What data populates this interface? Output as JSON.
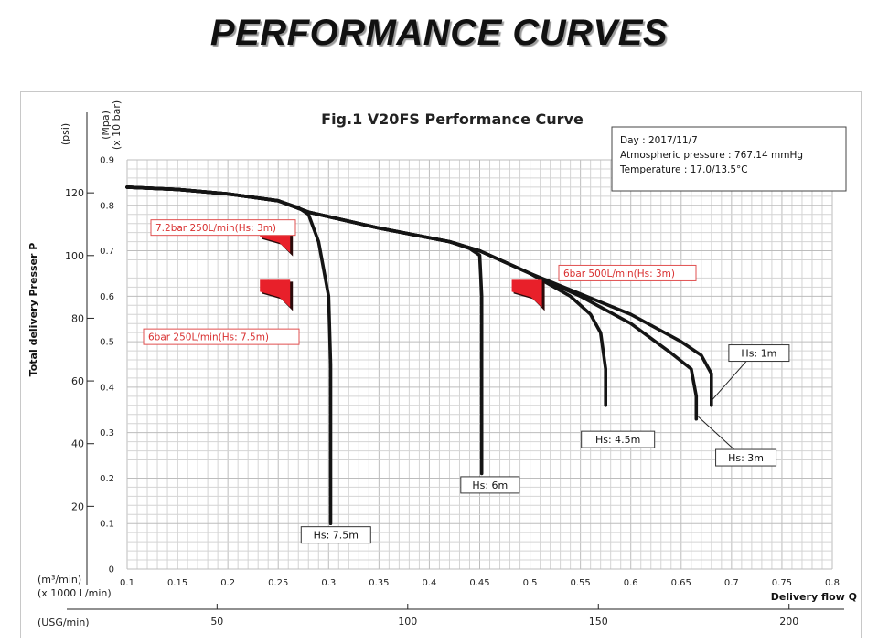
{
  "page": {
    "title": "PERFORMANCE CURVES"
  },
  "chart_data": {
    "type": "line",
    "title": "Fig.1 V20FS Performance Curve",
    "xlabel": "Delivery flow Q",
    "x_units": [
      "(m³/min)",
      "(x 1000 L/min)"
    ],
    "x2_units": "(USG/min)",
    "ylabel": "Total delivery Presser  P",
    "y_units_psi": "(psi)",
    "y_units_mpa": [
      "(Mpa)",
      "(x 10 bar)"
    ],
    "xlim": [
      0.1,
      0.8
    ],
    "ylim": [
      0,
      0.9
    ],
    "x_ticks": [
      "0.1",
      "0.15",
      "0.2",
      "0.25",
      "0.3",
      "0.35",
      "0.4",
      "0.45",
      "0.5",
      "0.55",
      "0.6",
      "0.65",
      "0.7",
      "0.75",
      "0.8"
    ],
    "y_ticks_mpa": [
      "0",
      "0.1",
      "0.2",
      "0.3",
      "0.4",
      "0.5",
      "0.6",
      "0.7",
      "0.8",
      "0.9"
    ],
    "y_ticks_psi": [
      {
        "value": 20,
        "label": "20"
      },
      {
        "value": 40,
        "label": "40"
      },
      {
        "value": 60,
        "label": "60"
      },
      {
        "value": 80,
        "label": "80"
      },
      {
        "value": 100,
        "label": "100"
      },
      {
        "value": 120,
        "label": "120"
      }
    ],
    "x2_ticks": [
      {
        "value": 50,
        "label": "50"
      },
      {
        "value": 100,
        "label": "100"
      },
      {
        "value": 150,
        "label": "150"
      },
      {
        "value": 200,
        "label": "200"
      }
    ],
    "grid": true,
    "info_box": {
      "lines": [
        "Day : 2017/11/7",
        "Atmospheric pressure  : 767.14 mmHg",
        "Temperature : 17.0/13.5°C"
      ]
    },
    "series": [
      {
        "name": "Hs: 7.5m",
        "points": [
          [
            0.1,
            0.84
          ],
          [
            0.15,
            0.835
          ],
          [
            0.2,
            0.825
          ],
          [
            0.25,
            0.81
          ],
          [
            0.27,
            0.795
          ],
          [
            0.28,
            0.78
          ],
          [
            0.29,
            0.72
          ],
          [
            0.3,
            0.6
          ],
          [
            0.302,
            0.45
          ],
          [
            0.302,
            0.3
          ],
          [
            0.302,
            0.1
          ]
        ]
      },
      {
        "name": "Hs: 6m",
        "points": [
          [
            0.1,
            0.84
          ],
          [
            0.15,
            0.835
          ],
          [
            0.2,
            0.825
          ],
          [
            0.25,
            0.81
          ],
          [
            0.28,
            0.785
          ],
          [
            0.35,
            0.75
          ],
          [
            0.42,
            0.72
          ],
          [
            0.44,
            0.705
          ],
          [
            0.45,
            0.69
          ],
          [
            0.452,
            0.6
          ],
          [
            0.452,
            0.4
          ],
          [
            0.452,
            0.21
          ]
        ]
      },
      {
        "name": "Hs: 4.5m",
        "points": [
          [
            0.1,
            0.84
          ],
          [
            0.15,
            0.835
          ],
          [
            0.2,
            0.825
          ],
          [
            0.25,
            0.81
          ],
          [
            0.28,
            0.785
          ],
          [
            0.35,
            0.75
          ],
          [
            0.42,
            0.72
          ],
          [
            0.45,
            0.7
          ],
          [
            0.5,
            0.65
          ],
          [
            0.54,
            0.6
          ],
          [
            0.56,
            0.56
          ],
          [
            0.57,
            0.52
          ],
          [
            0.575,
            0.44
          ],
          [
            0.575,
            0.36
          ]
        ]
      },
      {
        "name": "Hs: 3m",
        "points": [
          [
            0.1,
            0.84
          ],
          [
            0.15,
            0.835
          ],
          [
            0.2,
            0.825
          ],
          [
            0.25,
            0.81
          ],
          [
            0.28,
            0.785
          ],
          [
            0.35,
            0.75
          ],
          [
            0.42,
            0.72
          ],
          [
            0.45,
            0.7
          ],
          [
            0.5,
            0.65
          ],
          [
            0.55,
            0.6
          ],
          [
            0.6,
            0.54
          ],
          [
            0.64,
            0.475
          ],
          [
            0.66,
            0.44
          ],
          [
            0.665,
            0.38
          ],
          [
            0.665,
            0.33
          ]
        ]
      },
      {
        "name": "Hs: 1m",
        "points": [
          [
            0.1,
            0.84
          ],
          [
            0.15,
            0.835
          ],
          [
            0.2,
            0.825
          ],
          [
            0.25,
            0.81
          ],
          [
            0.28,
            0.785
          ],
          [
            0.35,
            0.75
          ],
          [
            0.42,
            0.72
          ],
          [
            0.45,
            0.7
          ],
          [
            0.5,
            0.65
          ],
          [
            0.55,
            0.605
          ],
          [
            0.6,
            0.56
          ],
          [
            0.65,
            0.5
          ],
          [
            0.67,
            0.47
          ],
          [
            0.68,
            0.43
          ],
          [
            0.68,
            0.36
          ]
        ]
      }
    ],
    "curve_labels": [
      {
        "text": "Hs: 7.5m",
        "x": 0.3,
        "y": 0.075
      },
      {
        "text": "Hs: 6m",
        "x": 0.453,
        "y": 0.185
      },
      {
        "text": "Hs: 4.5m",
        "x": 0.58,
        "y": 0.285
      },
      {
        "text": "Hs: 3m",
        "x": 0.707,
        "y": 0.245,
        "leader_to": [
          0.667,
          0.335
        ]
      },
      {
        "text": "Hs: 1m",
        "x": 0.72,
        "y": 0.475,
        "leader_to": [
          0.68,
          0.37
        ]
      }
    ],
    "operating_points": [
      {
        "text": "7.2bar 250L/min(Hs: 3m)",
        "x": 0.25,
        "y": 0.72,
        "label_y": 0.75
      },
      {
        "text": "6bar 250L/min(Hs: 7.5m)",
        "x": 0.25,
        "y": 0.6,
        "label_y": 0.51
      },
      {
        "text": "6bar 500L/min(Hs: 3m)",
        "x": 0.5,
        "y": 0.6,
        "label_y": 0.65
      }
    ],
    "colors": {
      "marker": "#e8202a",
      "marker_dark": "#2a0a0a",
      "label_red": "#d93030"
    }
  }
}
